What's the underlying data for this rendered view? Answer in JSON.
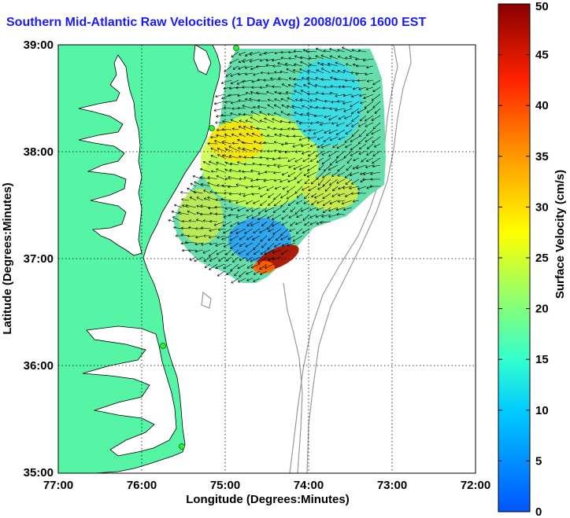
{
  "title": "Southern Mid-Atlantic Raw Velocities (1 Day Avg) 2008/01/06 1600 EST",
  "map": {
    "xlabel": "Longitude (Degrees:Minutes)",
    "ylabel": "Latitude (Degrees:Minutes)",
    "x_ticks": [
      "77:00",
      "76:00",
      "75:00",
      "74:00",
      "73:00",
      "72:00"
    ],
    "y_ticks": [
      "39:00",
      "38:00",
      "37:00",
      "36:00",
      "35:00"
    ],
    "lon_range": [
      -77,
      -72
    ],
    "lat_range": [
      35,
      39
    ],
    "land_color": "#55f5a5",
    "grid": true
  },
  "colorbar": {
    "label": "Surface Velocity (cm/s)",
    "min": 0,
    "max": 50,
    "ticks": [
      "0",
      "5",
      "10",
      "15",
      "20",
      "25",
      "30",
      "35",
      "40",
      "45",
      "50"
    ]
  }
}
